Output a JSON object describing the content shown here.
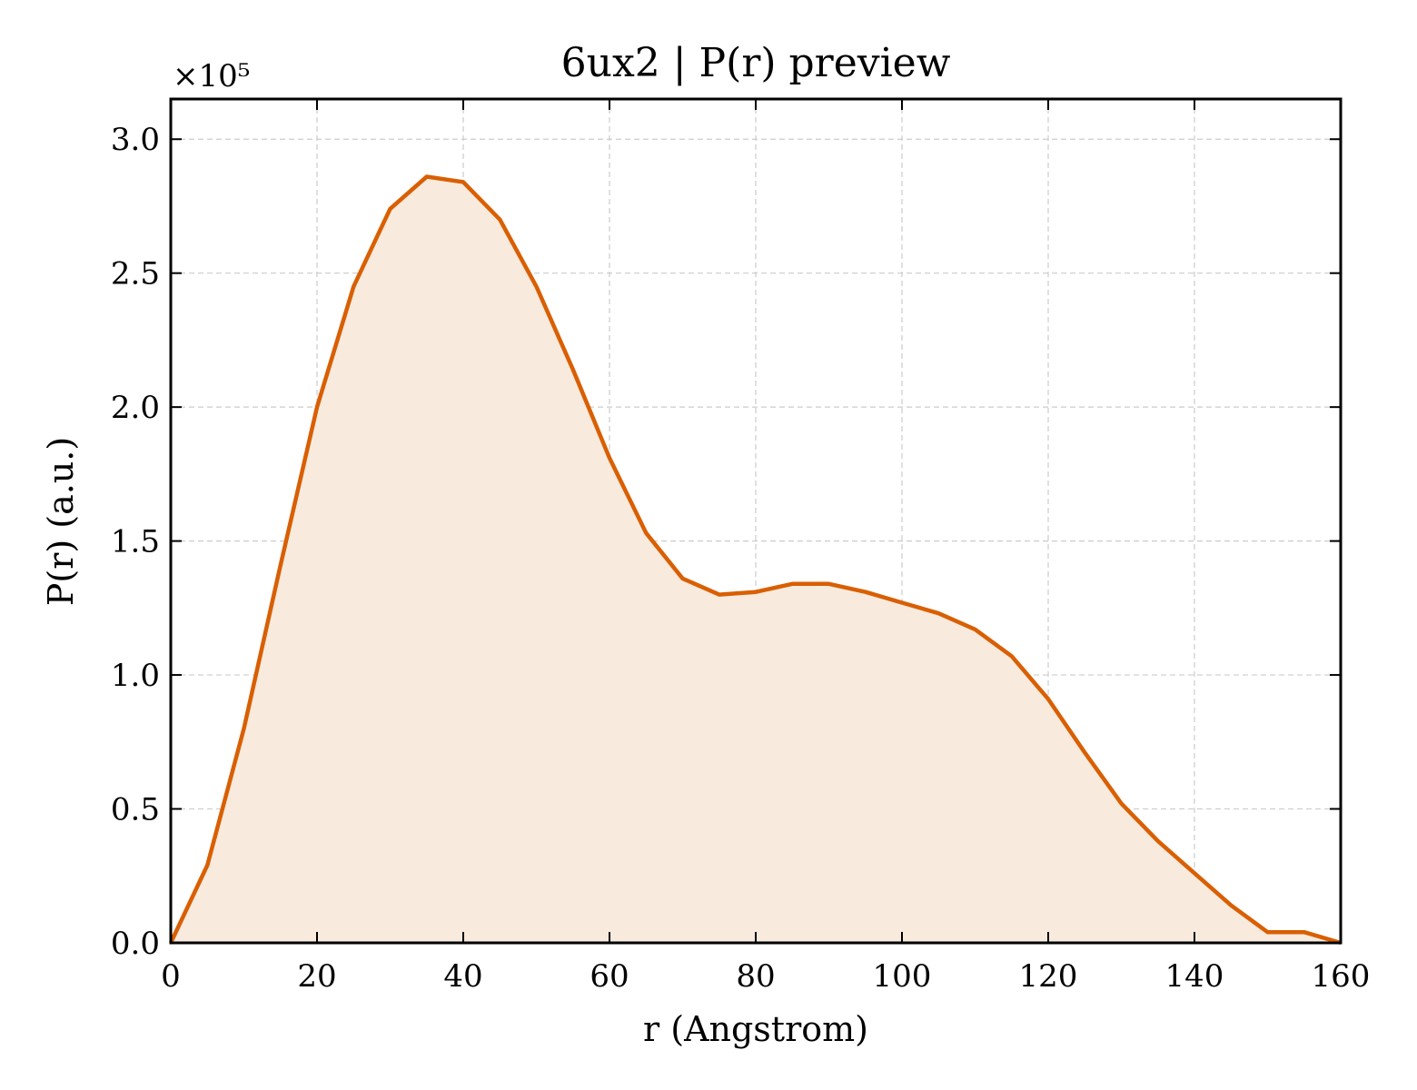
{
  "chart_data": {
    "type": "area",
    "title": "6ux2 | P(r) preview",
    "xlabel": "r (Angstrom)",
    "ylabel": "P(r) (a.u.)",
    "y_offset_label": "×10⁵",
    "xlim": [
      0,
      160
    ],
    "ylim": [
      0,
      3.15
    ],
    "x_ticks": [
      0,
      20,
      40,
      60,
      80,
      100,
      120,
      140,
      160
    ],
    "x_tick_labels": [
      "0",
      "20",
      "40",
      "60",
      "80",
      "100",
      "120",
      "140",
      "160"
    ],
    "y_ticks": [
      0,
      0.5,
      1.0,
      1.5,
      2.0,
      2.5,
      3.0
    ],
    "y_tick_labels": [
      "0.0",
      "0.5",
      "1.0",
      "1.5",
      "2.0",
      "2.5",
      "3.0"
    ],
    "grid": true,
    "line_color": "#d95f02",
    "fill_color": "#f9eade",
    "series": [
      {
        "x": [
          0,
          5,
          10,
          15,
          20,
          25,
          30,
          35,
          40,
          45,
          50,
          55,
          60,
          65,
          70,
          75,
          80,
          85,
          90,
          95,
          100,
          105,
          110,
          115,
          120,
          125,
          130,
          135,
          140,
          145,
          150,
          155,
          160
        ],
        "y": [
          0.0,
          0.29,
          0.8,
          1.41,
          2.0,
          2.45,
          2.74,
          2.86,
          2.84,
          2.7,
          2.45,
          2.14,
          1.81,
          1.53,
          1.36,
          1.3,
          1.31,
          1.34,
          1.34,
          1.31,
          1.27,
          1.23,
          1.17,
          1.07,
          0.91,
          0.71,
          0.52,
          0.38,
          0.26,
          0.14,
          0.04,
          0.04,
          0.0
        ]
      }
    ]
  }
}
